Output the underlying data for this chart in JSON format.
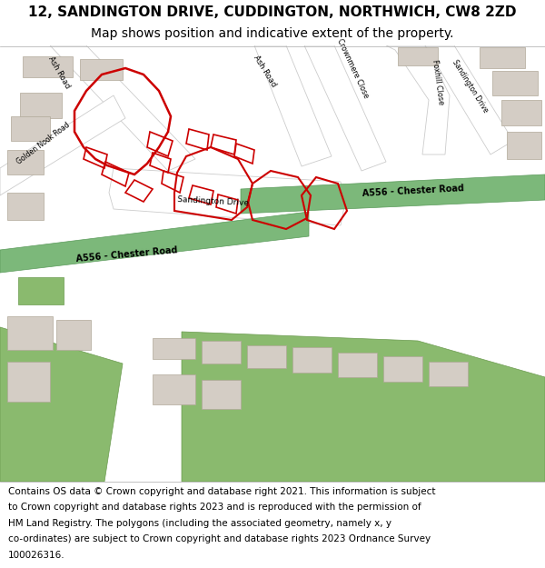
{
  "title_line1": "12, SANDINGTON DRIVE, CUDDINGTON, NORTHWICH, CW8 2ZD",
  "title_line2": "Map shows position and indicative extent of the property.",
  "footer_lines": [
    "Contains OS data © Crown copyright and database right 2021. This information is subject",
    "to Crown copyright and database rights 2023 and is reproduced with the permission of",
    "HM Land Registry. The polygons (including the associated geometry, namely x, y",
    "co-ordinates) are subject to Crown copyright and database rights 2023 Ordnance Survey",
    "100026316."
  ],
  "bg_color": "#ede9e3",
  "road_fill": "#ffffff",
  "road_stroke": "#cccccc",
  "green_road_fill": "#7cb87a",
  "green_road_stroke": "#5a9a5a",
  "red_outline_color": "#cc0000",
  "building_fill": "#d4cdc5",
  "building_stroke": "#b0a898",
  "grass_fill": "#8aba6e",
  "grass_stroke": "#6a9a4e",
  "title_fontsize": 11,
  "subtitle_fontsize": 10,
  "footer_fontsize": 7.5
}
